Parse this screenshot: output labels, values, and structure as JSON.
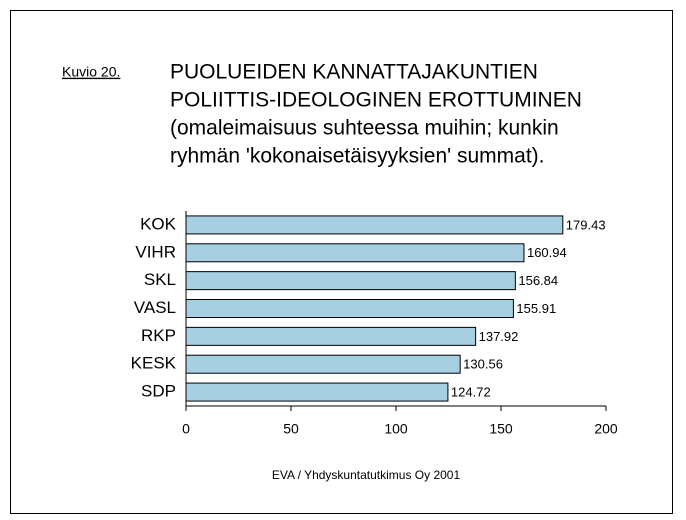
{
  "chart_data": {
    "type": "bar",
    "orientation": "horizontal",
    "figure_label": "Kuvio 20.",
    "title_lines": [
      "PUOLUEIDEN KANNATTAJAKUNTIEN",
      "POLIITTIS-IDEOLOGINEN EROTTUMINEN",
      "(omaleimaisuus suhteessa muihin; kunkin",
      "ryhmän 'kokonaisetäisyyksien' summat)."
    ],
    "categories": [
      "KOK",
      "VIHR",
      "SKL",
      "VASL",
      "RKP",
      "KESK",
      "SDP"
    ],
    "values": [
      179.43,
      160.94,
      156.84,
      155.91,
      137.92,
      130.56,
      124.72
    ],
    "color": "#a6d0e2",
    "xlim": [
      0,
      200
    ],
    "xticks": [
      0,
      50,
      100,
      150,
      200
    ],
    "source": "EVA / Yhdyskuntatutkimus Oy 2001"
  }
}
